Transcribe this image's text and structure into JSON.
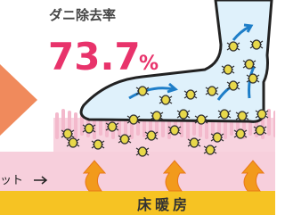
{
  "header": {
    "title": "ダニ除去率",
    "rate": "73.7",
    "unit": "%"
  },
  "labels": {
    "carpet": "ット",
    "floor_heating": "床暖房"
  }
}
